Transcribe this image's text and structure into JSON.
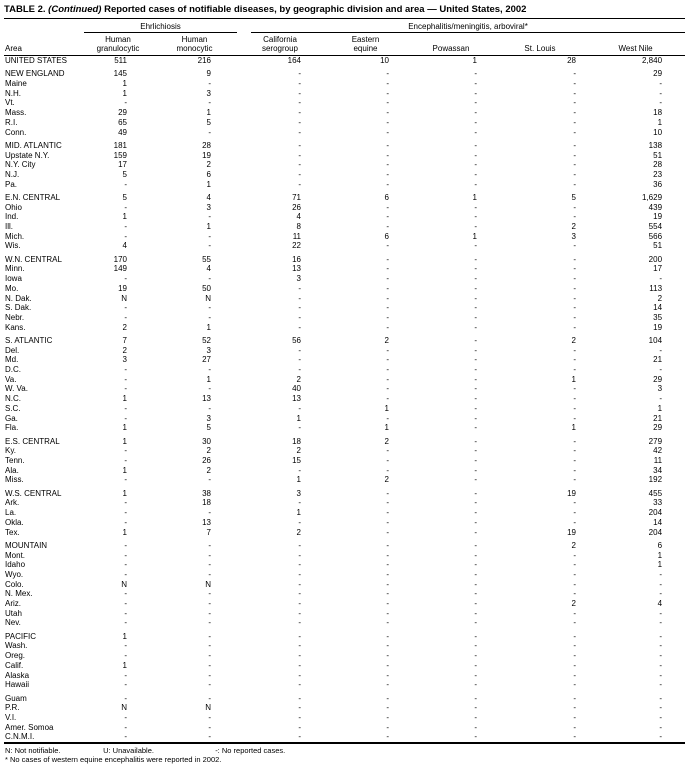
{
  "title": {
    "prefix": "TABLE 2.",
    "continued": "(Continued)",
    "rest": "Reported cases of notifiable diseases, by geographic division and area — United States, 2002"
  },
  "table": {
    "group_headers": [
      {
        "label": "Ehrlichiosis",
        "span": 2
      },
      {
        "label": "Encephalitis/meningitis, arboviral*",
        "span": 5
      }
    ],
    "columns": [
      {
        "id": "area",
        "line1": "",
        "line2": "Area"
      },
      {
        "id": "human-granulocytic",
        "line1": "Human",
        "line2": "granulocytic"
      },
      {
        "id": "human-monocytic",
        "line1": "Human",
        "line2": "monocytic"
      },
      {
        "id": "california-serogroup",
        "line1": "California",
        "line2": "serogroup"
      },
      {
        "id": "eastern-equine",
        "line1": "Eastern",
        "line2": "equine"
      },
      {
        "id": "powassan",
        "line1": "",
        "line2": "Powassan"
      },
      {
        "id": "st-louis",
        "line1": "",
        "line2": "St. Louis"
      },
      {
        "id": "west-nile",
        "line1": "",
        "line2": "West Nile"
      }
    ],
    "rows": [
      {
        "area": "UNITED STATES",
        "type": "total",
        "gap": false,
        "values": [
          "511",
          "216",
          "164",
          "10",
          "1",
          "28",
          "2,840"
        ]
      },
      {
        "area": "NEW ENGLAND",
        "type": "division",
        "gap": true,
        "values": [
          "145",
          "9",
          "-",
          "-",
          "-",
          "-",
          "29"
        ]
      },
      {
        "area": "Maine",
        "type": "state",
        "gap": false,
        "values": [
          "1",
          "-",
          "-",
          "-",
          "-",
          "-",
          "-"
        ]
      },
      {
        "area": "N.H.",
        "type": "state",
        "gap": false,
        "values": [
          "1",
          "3",
          "-",
          "-",
          "-",
          "-",
          "-"
        ]
      },
      {
        "area": "Vt.",
        "type": "state",
        "gap": false,
        "values": [
          "-",
          "-",
          "-",
          "-",
          "-",
          "-",
          "-"
        ]
      },
      {
        "area": "Mass.",
        "type": "state",
        "gap": false,
        "values": [
          "29",
          "1",
          "-",
          "-",
          "-",
          "-",
          "18"
        ]
      },
      {
        "area": "R.I.",
        "type": "state",
        "gap": false,
        "values": [
          "65",
          "5",
          "-",
          "-",
          "-",
          "-",
          "1"
        ]
      },
      {
        "area": "Conn.",
        "type": "state",
        "gap": false,
        "values": [
          "49",
          "-",
          "-",
          "-",
          "-",
          "-",
          "10"
        ]
      },
      {
        "area": "MID. ATLANTIC",
        "type": "division",
        "gap": true,
        "values": [
          "181",
          "28",
          "-",
          "-",
          "-",
          "-",
          "138"
        ]
      },
      {
        "area": "Upstate N.Y.",
        "type": "state",
        "gap": false,
        "values": [
          "159",
          "19",
          "-",
          "-",
          "-",
          "-",
          "51"
        ]
      },
      {
        "area": "N.Y. City",
        "type": "state",
        "gap": false,
        "values": [
          "17",
          "2",
          "-",
          "-",
          "-",
          "-",
          "28"
        ]
      },
      {
        "area": "N.J.",
        "type": "state",
        "gap": false,
        "values": [
          "5",
          "6",
          "-",
          "-",
          "-",
          "-",
          "23"
        ]
      },
      {
        "area": "Pa.",
        "type": "state",
        "gap": false,
        "values": [
          "-",
          "1",
          "-",
          "-",
          "-",
          "-",
          "36"
        ]
      },
      {
        "area": "E.N. CENTRAL",
        "type": "division",
        "gap": true,
        "values": [
          "5",
          "4",
          "71",
          "6",
          "1",
          "5",
          "1,629"
        ]
      },
      {
        "area": "Ohio",
        "type": "state",
        "gap": false,
        "values": [
          "-",
          "3",
          "26",
          "-",
          "-",
          "-",
          "439"
        ]
      },
      {
        "area": "Ind.",
        "type": "state",
        "gap": false,
        "values": [
          "1",
          "-",
          "4",
          "-",
          "-",
          "-",
          "19"
        ]
      },
      {
        "area": "Ill.",
        "type": "state",
        "gap": false,
        "values": [
          "-",
          "1",
          "8",
          "-",
          "-",
          "2",
          "554"
        ]
      },
      {
        "area": "Mich.",
        "type": "state",
        "gap": false,
        "values": [
          "-",
          "-",
          "11",
          "6",
          "1",
          "3",
          "566"
        ]
      },
      {
        "area": "Wis.",
        "type": "state",
        "gap": false,
        "values": [
          "4",
          "-",
          "22",
          "-",
          "-",
          "-",
          "51"
        ]
      },
      {
        "area": "W.N. CENTRAL",
        "type": "division",
        "gap": true,
        "values": [
          "170",
          "55",
          "16",
          "-",
          "-",
          "-",
          "200"
        ]
      },
      {
        "area": "Minn.",
        "type": "state",
        "gap": false,
        "values": [
          "149",
          "4",
          "13",
          "-",
          "-",
          "-",
          "17"
        ]
      },
      {
        "area": "Iowa",
        "type": "state",
        "gap": false,
        "values": [
          "-",
          "-",
          "3",
          "-",
          "-",
          "-",
          "-"
        ]
      },
      {
        "area": "Mo.",
        "type": "state",
        "gap": false,
        "values": [
          "19",
          "50",
          "-",
          "-",
          "-",
          "-",
          "113"
        ]
      },
      {
        "area": "N. Dak.",
        "type": "state",
        "gap": false,
        "values": [
          "N",
          "N",
          "-",
          "-",
          "-",
          "-",
          "2"
        ]
      },
      {
        "area": "S. Dak.",
        "type": "state",
        "gap": false,
        "values": [
          "-",
          "-",
          "-",
          "-",
          "-",
          "-",
          "14"
        ]
      },
      {
        "area": "Nebr.",
        "type": "state",
        "gap": false,
        "values": [
          "-",
          "-",
          "-",
          "-",
          "-",
          "-",
          "35"
        ]
      },
      {
        "area": "Kans.",
        "type": "state",
        "gap": false,
        "values": [
          "2",
          "1",
          "-",
          "-",
          "-",
          "-",
          "19"
        ]
      },
      {
        "area": "S. ATLANTIC",
        "type": "division",
        "gap": true,
        "values": [
          "7",
          "52",
          "56",
          "2",
          "-",
          "2",
          "104"
        ]
      },
      {
        "area": "Del.",
        "type": "state",
        "gap": false,
        "values": [
          "2",
          "3",
          "-",
          "-",
          "-",
          "-",
          "-"
        ]
      },
      {
        "area": "Md.",
        "type": "state",
        "gap": false,
        "values": [
          "3",
          "27",
          "-",
          "-",
          "-",
          "-",
          "21"
        ]
      },
      {
        "area": "D.C.",
        "type": "state",
        "gap": false,
        "values": [
          "-",
          "-",
          "-",
          "-",
          "-",
          "-",
          "-"
        ]
      },
      {
        "area": "Va.",
        "type": "state",
        "gap": false,
        "values": [
          "-",
          "1",
          "2",
          "-",
          "-",
          "1",
          "29"
        ]
      },
      {
        "area": "W. Va.",
        "type": "state",
        "gap": false,
        "values": [
          "-",
          "-",
          "40",
          "-",
          "-",
          "-",
          "3"
        ]
      },
      {
        "area": "N.C.",
        "type": "state",
        "gap": false,
        "values": [
          "1",
          "13",
          "13",
          "-",
          "-",
          "-",
          "-"
        ]
      },
      {
        "area": "S.C.",
        "type": "state",
        "gap": false,
        "values": [
          "-",
          "-",
          "-",
          "1",
          "-",
          "-",
          "1"
        ]
      },
      {
        "area": "Ga.",
        "type": "state",
        "gap": false,
        "values": [
          "-",
          "3",
          "1",
          "-",
          "-",
          "-",
          "21"
        ]
      },
      {
        "area": "Fla.",
        "type": "state",
        "gap": false,
        "values": [
          "1",
          "5",
          "-",
          "1",
          "-",
          "1",
          "29"
        ]
      },
      {
        "area": "E.S. CENTRAL",
        "type": "division",
        "gap": true,
        "values": [
          "1",
          "30",
          "18",
          "2",
          "-",
          "-",
          "279"
        ]
      },
      {
        "area": "Ky.",
        "type": "state",
        "gap": false,
        "values": [
          "-",
          "2",
          "2",
          "-",
          "-",
          "-",
          "42"
        ]
      },
      {
        "area": "Tenn.",
        "type": "state",
        "gap": false,
        "values": [
          "-",
          "26",
          "15",
          "-",
          "-",
          "-",
          "11"
        ]
      },
      {
        "area": "Ala.",
        "type": "state",
        "gap": false,
        "values": [
          "1",
          "2",
          "-",
          "-",
          "-",
          "-",
          "34"
        ]
      },
      {
        "area": "Miss.",
        "type": "state",
        "gap": false,
        "values": [
          "-",
          "-",
          "1",
          "2",
          "-",
          "-",
          "192"
        ]
      },
      {
        "area": "W.S. CENTRAL",
        "type": "division",
        "gap": true,
        "values": [
          "1",
          "38",
          "3",
          "-",
          "-",
          "19",
          "455"
        ]
      },
      {
        "area": "Ark.",
        "type": "state",
        "gap": false,
        "values": [
          "-",
          "18",
          "-",
          "-",
          "-",
          "-",
          "33"
        ]
      },
      {
        "area": "La.",
        "type": "state",
        "gap": false,
        "values": [
          "-",
          "-",
          "1",
          "-",
          "-",
          "-",
          "204"
        ]
      },
      {
        "area": "Okla.",
        "type": "state",
        "gap": false,
        "values": [
          "-",
          "13",
          "-",
          "-",
          "-",
          "-",
          "14"
        ]
      },
      {
        "area": "Tex.",
        "type": "state",
        "gap": false,
        "values": [
          "1",
          "7",
          "2",
          "-",
          "-",
          "19",
          "204"
        ]
      },
      {
        "area": "MOUNTAIN",
        "type": "division",
        "gap": true,
        "values": [
          "-",
          "-",
          "-",
          "-",
          "-",
          "2",
          "6"
        ]
      },
      {
        "area": "Mont.",
        "type": "state",
        "gap": false,
        "values": [
          "-",
          "-",
          "-",
          "-",
          "-",
          "-",
          "1"
        ]
      },
      {
        "area": "Idaho",
        "type": "state",
        "gap": false,
        "values": [
          "-",
          "-",
          "-",
          "-",
          "-",
          "-",
          "1"
        ]
      },
      {
        "area": "Wyo.",
        "type": "state",
        "gap": false,
        "values": [
          "-",
          "-",
          "-",
          "-",
          "-",
          "-",
          "-"
        ]
      },
      {
        "area": "Colo.",
        "type": "state",
        "gap": false,
        "values": [
          "N",
          "N",
          "-",
          "-",
          "-",
          "-",
          "-"
        ]
      },
      {
        "area": "N. Mex.",
        "type": "state",
        "gap": false,
        "values": [
          "-",
          "-",
          "-",
          "-",
          "-",
          "-",
          "-"
        ]
      },
      {
        "area": "Ariz.",
        "type": "state",
        "gap": false,
        "values": [
          "-",
          "-",
          "-",
          "-",
          "-",
          "2",
          "4"
        ]
      },
      {
        "area": "Utah",
        "type": "state",
        "gap": false,
        "values": [
          "-",
          "-",
          "-",
          "-",
          "-",
          "-",
          "-"
        ]
      },
      {
        "area": "Nev.",
        "type": "state",
        "gap": false,
        "values": [
          "-",
          "-",
          "-",
          "-",
          "-",
          "-",
          "-"
        ]
      },
      {
        "area": "PACIFIC",
        "type": "division",
        "gap": true,
        "values": [
          "1",
          "-",
          "-",
          "-",
          "-",
          "-",
          "-"
        ]
      },
      {
        "area": "Wash.",
        "type": "state",
        "gap": false,
        "values": [
          "-",
          "-",
          "-",
          "-",
          "-",
          "-",
          "-"
        ]
      },
      {
        "area": "Oreg.",
        "type": "state",
        "gap": false,
        "values": [
          "-",
          "-",
          "-",
          "-",
          "-",
          "-",
          "-"
        ]
      },
      {
        "area": "Calif.",
        "type": "state",
        "gap": false,
        "values": [
          "1",
          "-",
          "-",
          "-",
          "-",
          "-",
          "-"
        ]
      },
      {
        "area": "Alaska",
        "type": "state",
        "gap": false,
        "values": [
          "-",
          "-",
          "-",
          "-",
          "-",
          "-",
          "-"
        ]
      },
      {
        "area": "Hawaii",
        "type": "state",
        "gap": false,
        "values": [
          "-",
          "-",
          "-",
          "-",
          "-",
          "-",
          "-"
        ]
      },
      {
        "area": "Guam",
        "type": "territory",
        "gap": true,
        "values": [
          "-",
          "-",
          "-",
          "-",
          "-",
          "-",
          "-"
        ]
      },
      {
        "area": "P.R.",
        "type": "territory",
        "gap": false,
        "values": [
          "N",
          "N",
          "-",
          "-",
          "-",
          "-",
          "-"
        ]
      },
      {
        "area": "V.I.",
        "type": "territory",
        "gap": false,
        "values": [
          "-",
          "-",
          "-",
          "-",
          "-",
          "-",
          "-"
        ]
      },
      {
        "area": "Amer. Somoa",
        "type": "territory",
        "gap": false,
        "values": [
          "-",
          "-",
          "-",
          "-",
          "-",
          "-",
          "-"
        ]
      },
      {
        "area": "C.N.M.I.",
        "type": "territory",
        "gap": false,
        "values": [
          "-",
          "-",
          "-",
          "-",
          "-",
          "-",
          "-"
        ]
      }
    ]
  },
  "footnotes": {
    "legend": [
      "N: Not notifiable.",
      "U: Unavailable.",
      "-: No reported cases."
    ],
    "note": "* No cases of western equine encephalitis were reported in 2002."
  }
}
